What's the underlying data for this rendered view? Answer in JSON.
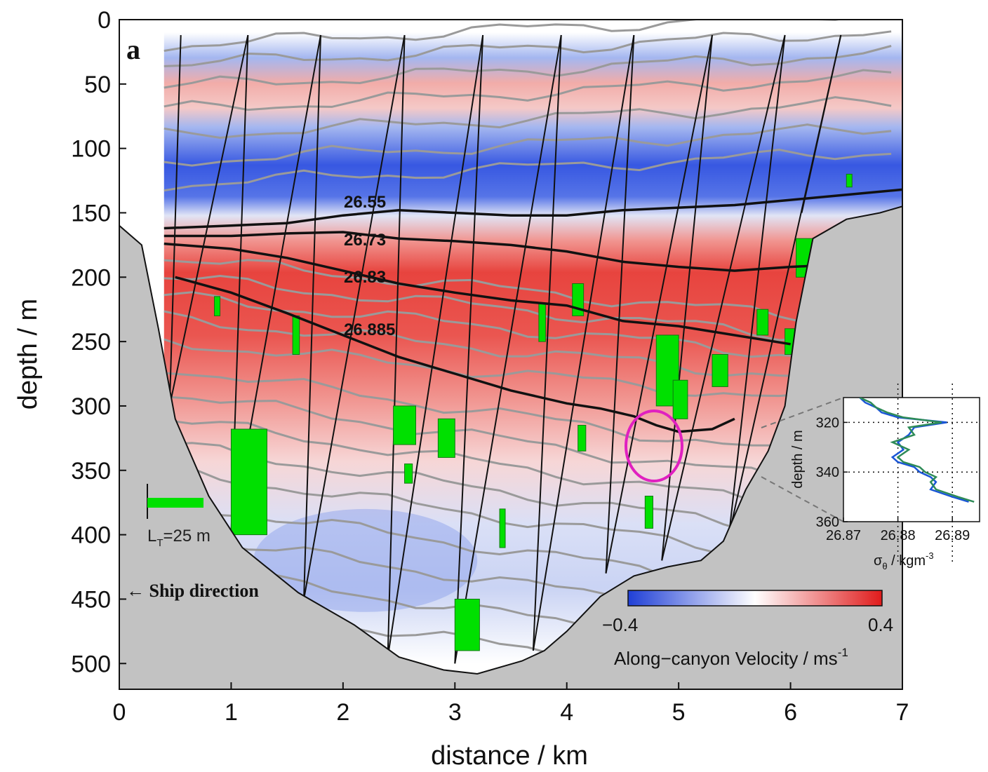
{
  "chart_data": [
    {
      "type": "heatmap",
      "panel_label": "a",
      "xlabel": "distance / km",
      "ylabel": "depth / m",
      "xlim": [
        0,
        7
      ],
      "ylim": [
        0,
        520
      ],
      "y_reversed": true,
      "xticks": [
        "0",
        "1",
        "2",
        "3",
        "4",
        "5",
        "6",
        "7"
      ],
      "yticks": [
        "0",
        "50",
        "100",
        "150",
        "200",
        "250",
        "300",
        "350",
        "400",
        "450",
        "500"
      ],
      "colorbar": {
        "label": "Along−canyon Velocity / ms",
        "label_exp": "-1",
        "min_label": "−0.4",
        "max_label": "0.4",
        "range": [
          -0.4,
          0.4
        ],
        "colors": [
          "#1f3fd6",
          "#ffffff",
          "#e01b1b"
        ]
      },
      "isopycnals": [
        {
          "label": "26.55",
          "x": [
            0.4,
            1,
            1.5,
            2,
            2.5,
            3,
            3.5,
            4,
            4.5,
            5,
            5.5,
            6,
            6.5,
            7
          ],
          "y": [
            162,
            160,
            158,
            152,
            148,
            150,
            152,
            152,
            148,
            146,
            144,
            140,
            136,
            132
          ]
        },
        {
          "label": "26.73",
          "x": [
            0.4,
            1,
            1.5,
            2,
            2.5,
            3,
            3.5,
            4,
            4.5,
            5,
            5.5,
            6,
            6.5,
            7
          ],
          "y": [
            168,
            168,
            166,
            165,
            170,
            172,
            175,
            180,
            188,
            192,
            195,
            192,
            190,
            180
          ]
        },
        {
          "label": "26.83",
          "x": [
            0.4,
            1,
            1.5,
            2,
            2.5,
            3,
            3.5,
            4,
            4.5,
            5,
            5.5,
            6
          ],
          "y": [
            174,
            178,
            185,
            195,
            205,
            212,
            218,
            222,
            234,
            238,
            245,
            252
          ]
        },
        {
          "label": "26.885",
          "x": [
            0.5,
            1,
            1.5,
            2,
            2.5,
            3,
            3.5,
            4,
            4.3,
            4.6,
            4.8,
            5,
            5.3,
            5.5
          ],
          "y": [
            200,
            212,
            228,
            245,
            262,
            275,
            288,
            298,
            302,
            308,
            315,
            320,
            318,
            310
          ]
        }
      ],
      "annotations": [
        "L_T=25 m",
        "← Ship direction"
      ],
      "lt_scale_label": "L",
      "lt_scale_sub": "T",
      "lt_scale_value": "=25 m",
      "ship_direction": "← Ship direction"
    },
    {
      "type": "line",
      "inset": true,
      "xlabel": "σ",
      "xlabel_sub": "θ",
      "xlabel_unit": " / kgm",
      "xlabel_exp": "-3",
      "ylabel": "depth / m",
      "xlim": [
        26.87,
        26.895
      ],
      "ylim": [
        310,
        360
      ],
      "y_reversed": true,
      "xticks": [
        "26.87",
        "26.88",
        "26.89"
      ],
      "yticks": [
        "320",
        "340",
        "360"
      ],
      "dotted_grid_x": [
        26.88,
        26.89
      ],
      "dotted_grid_y": [
        320,
        340
      ],
      "series": [
        {
          "color": "#1a56d6",
          "x": [
            26.873,
            26.874,
            26.876,
            26.877,
            26.88,
            26.889,
            26.883,
            26.882,
            26.88,
            26.881,
            26.879,
            26.88,
            26.883,
            26.884,
            26.886,
            26.887,
            26.886,
            26.89,
            26.893
          ],
          "y": [
            310,
            312,
            314,
            316,
            318,
            320,
            322,
            325,
            328,
            331,
            334,
            336,
            338,
            340,
            342,
            344,
            347,
            350,
            352
          ]
        },
        {
          "color": "#2e8b57",
          "x": [
            26.873,
            26.875,
            26.876,
            26.878,
            26.881,
            26.888,
            26.882,
            26.883,
            26.879,
            26.882,
            26.88,
            26.881,
            26.884,
            26.885,
            26.887,
            26.886,
            26.887,
            26.891,
            26.894
          ],
          "y": [
            310,
            312,
            314,
            316,
            318,
            320,
            322,
            325,
            328,
            331,
            334,
            336,
            338,
            340,
            342,
            344,
            347,
            350,
            352
          ]
        }
      ]
    }
  ]
}
